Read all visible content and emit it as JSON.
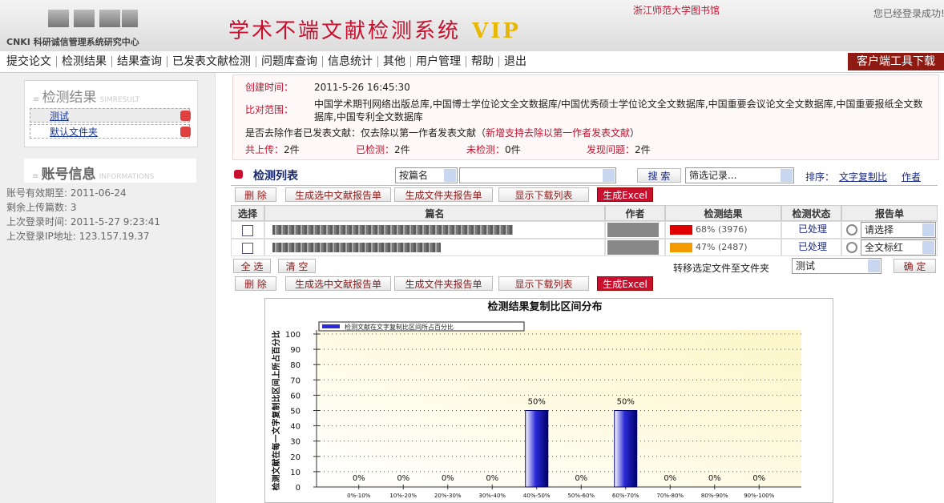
{
  "header": {
    "org": "CNKI 科研诚信管理系统研究中心",
    "title": "学术不端文献检测系统",
    "badge": "VIP",
    "library": "浙江师范大学图书馆",
    "status": "您已经登录成功!"
  },
  "nav": {
    "items": [
      "提交论文",
      "检测结果",
      "结果查询",
      "已发表文献检测",
      "问题库查询",
      "信息统计",
      "其他",
      "用户管理",
      "帮助",
      "退出"
    ],
    "download": "客户端工具下载"
  },
  "sidebar": {
    "results": {
      "title": "检测结果",
      "subtitle": "SIMRESULT",
      "folders": [
        "测试",
        "默认文件夹"
      ]
    },
    "account": {
      "title": "账号信息",
      "subtitle": "INFORMATIONS",
      "lines": [
        "账号有效期至: 2011-06-24",
        "剩余上传篇数: 3",
        "上次登录时间: 2011-5-27 9:23:41",
        "上次登录IP地址: 123.157.19.37"
      ]
    }
  },
  "summary": {
    "created_label": "创建时间：",
    "created": "2011-5-26 16:45:30",
    "scope_label": "比对范围：",
    "scope": "中国学术期刊网络出版总库,中国博士学位论文全文数据库/中国优秀硕士学位论文全文数据库,中国重要会议论文全文数据库,中国重要报纸全文数据库,中国专利全文数据库",
    "exclude": "是否去除作者已发表文献：仅去除以第一作者发表文献（",
    "exclude_note": "新增支持去除以第一作者发表文献",
    "exclude_end": "）",
    "counts": [
      {
        "label": "共上传：",
        "value": "2件"
      },
      {
        "label": "已检测：",
        "value": "2件"
      },
      {
        "label": "未检测：",
        "value": "0件"
      },
      {
        "label": "发现问题：",
        "value": "2件"
      }
    ]
  },
  "list": {
    "title": "检测列表",
    "field": "按篇名",
    "search": "搜 索",
    "filter": "筛选记录...",
    "sort_label": "排序：",
    "sort_options": [
      "文字复制比",
      "作者"
    ],
    "toolbar": [
      "删 除",
      "生成选中文献报告单",
      "生成文件夹报告单",
      "显示下载列表",
      "生成Excel"
    ],
    "columns": [
      "选择",
      "篇名",
      "作者",
      "检测结果",
      "检测状态",
      "报告单"
    ],
    "rows": [
      {
        "result": "68% (3976)",
        "color": "#e00000",
        "status": "已处理",
        "report": "请选择"
      },
      {
        "result": "47% (2487)",
        "color": "#f29a00",
        "status": "已处理",
        "report": "全文标红"
      }
    ],
    "select_all": "全 选",
    "clear": "清 空",
    "move_label": "转移选定文件至文件夹",
    "move_target": "测试",
    "confirm": "确 定"
  },
  "chart": {
    "type": "bar",
    "title": "检测结果复制比区间分布",
    "legend": "检测文献在文字复制比区间所占百分比",
    "y_label": "检测文献在每一文字复制比区间上所占百分比",
    "categories": [
      "0%-10%",
      "10%-20%",
      "20%-30%",
      "30%-40%",
      "40%-50%",
      "50%-60%",
      "60%-70%",
      "70%-80%",
      "80%-90%",
      "90%-100%"
    ],
    "values": [
      0,
      0,
      0,
      0,
      50,
      0,
      50,
      0,
      0,
      0
    ],
    "value_labels": [
      "0%",
      "0%",
      "0%",
      "0%",
      "50%",
      "0%",
      "50%",
      "0%",
      "0%",
      "0%"
    ],
    "color": "#2b2bd8",
    "ylim": [
      0,
      100
    ],
    "yticks": [
      0,
      10,
      20,
      30,
      40,
      50,
      60,
      70,
      80,
      90,
      100
    ],
    "grid": true
  }
}
